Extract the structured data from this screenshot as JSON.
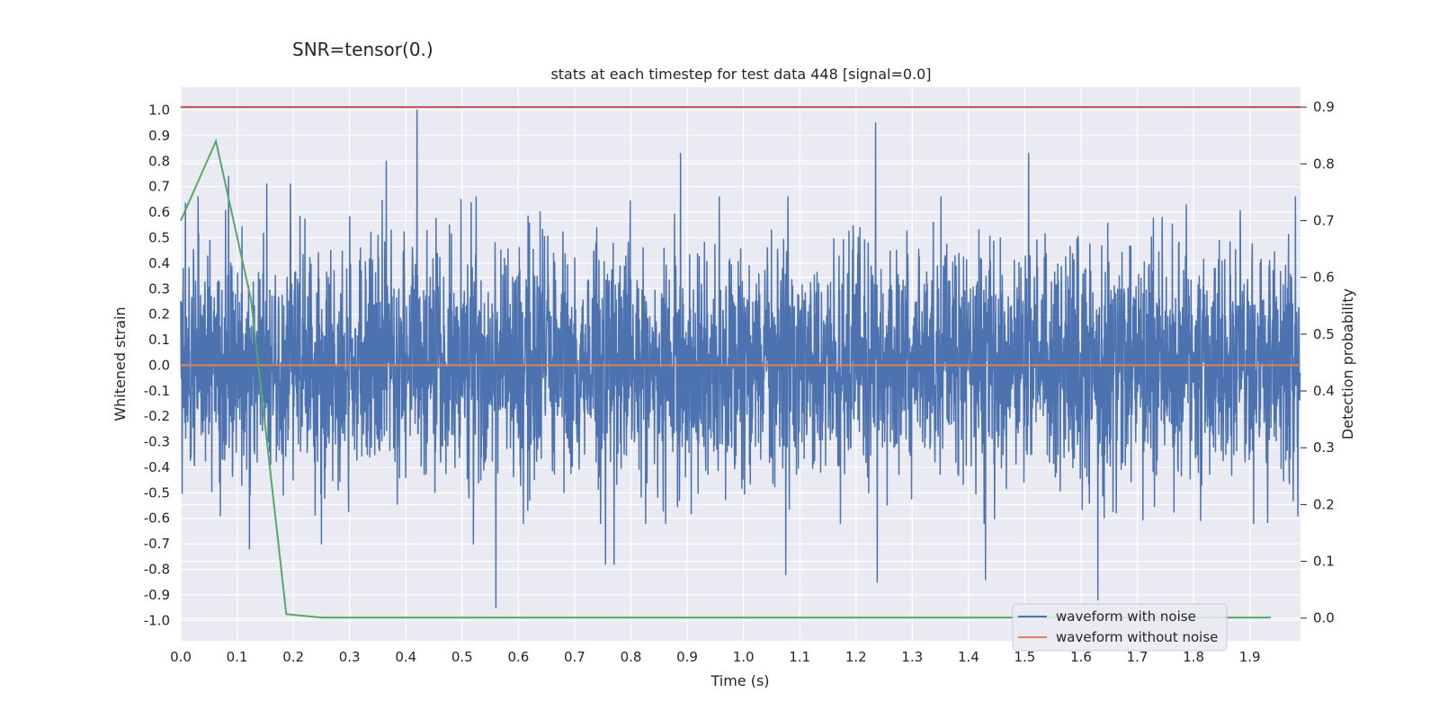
{
  "chart_data": {
    "type": "line",
    "suptitle": "SNR=tensor(0.)",
    "title": "stats at each timestep for test data 448 [signal=0.0]",
    "xlabel": "Time (s)",
    "ylabel_left": "Whitened strain",
    "ylabel_right": "Detection probability",
    "xlim": [
      0.0,
      1.99
    ],
    "ylim_left": [
      -1.08,
      1.09
    ],
    "ylim_right": [
      -0.04,
      0.935
    ],
    "x_ticks": [
      "0.0",
      "0.1",
      "0.2",
      "0.3",
      "0.4",
      "0.5",
      "0.6",
      "0.7",
      "0.8",
      "0.9",
      "1.0",
      "1.1",
      "1.2",
      "1.3",
      "1.4",
      "1.5",
      "1.6",
      "1.7",
      "1.8",
      "1.9"
    ],
    "y_ticks_left": [
      "1.0",
      "0.9",
      "0.8",
      "0.7",
      "0.6",
      "0.5",
      "0.4",
      "0.3",
      "0.2",
      "0.1",
      "0.0",
      "-0.1",
      "-0.2",
      "-0.3",
      "-0.4",
      "-0.5",
      "-0.6",
      "-0.7",
      "-0.8",
      "-0.9",
      "-1.0"
    ],
    "y_ticks_right": [
      "0.9",
      "0.8",
      "0.7",
      "0.6",
      "0.5",
      "0.4",
      "0.3",
      "0.2",
      "0.1",
      "0.0"
    ],
    "series": [
      {
        "name": "waveform with noise",
        "axis": "left",
        "color": "#4c72b0",
        "style": "noisy",
        "sample_rate_hz": 2048,
        "spikes": [
          {
            "x": 0.42,
            "y": 1.0
          },
          {
            "x": 1.235,
            "y": 0.95
          },
          {
            "x": 0.888,
            "y": 0.83
          },
          {
            "x": 1.507,
            "y": 0.83
          },
          {
            "x": 0.365,
            "y": 0.8
          },
          {
            "x": 0.085,
            "y": 0.74
          },
          {
            "x": 0.195,
            "y": 0.71
          },
          {
            "x": 0.153,
            "y": 0.71
          },
          {
            "x": 0.56,
            "y": -0.95
          },
          {
            "x": 1.63,
            "y": -0.92
          },
          {
            "x": 1.238,
            "y": -0.85
          },
          {
            "x": 1.43,
            "y": -0.84
          },
          {
            "x": 1.075,
            "y": -0.82
          },
          {
            "x": 0.755,
            "y": -0.78
          },
          {
            "x": 0.77,
            "y": -0.78
          },
          {
            "x": 0.122,
            "y": -0.72
          },
          {
            "x": 0.25,
            "y": -0.7
          },
          {
            "x": 0.52,
            "y": -0.7
          }
        ]
      },
      {
        "name": "waveform without noise",
        "axis": "left",
        "color": "#dd8452",
        "x": [
          0.0,
          1.99
        ],
        "y": [
          0.0,
          0.0
        ]
      },
      {
        "name": "detection probability",
        "axis": "right",
        "color": "#55a868",
        "x": [
          0.0,
          0.0625,
          0.125,
          0.1875,
          0.25,
          0.3125,
          0.5,
          0.75,
          1.0,
          1.25,
          1.5,
          1.75,
          1.9375
        ],
        "y": [
          0.7,
          0.84,
          0.56,
          0.007,
          0.001,
          0.001,
          0.001,
          0.001,
          0.001,
          0.001,
          0.001,
          0.001,
          0.001
        ]
      },
      {
        "name": "threshold",
        "axis": "right",
        "color": "#c44e52",
        "x": [
          0.0,
          1.99
        ],
        "y": [
          0.9,
          0.9
        ]
      }
    ],
    "legend": [
      "waveform with noise",
      "waveform without noise"
    ],
    "legend_loc": "lower-right",
    "grid": true
  }
}
